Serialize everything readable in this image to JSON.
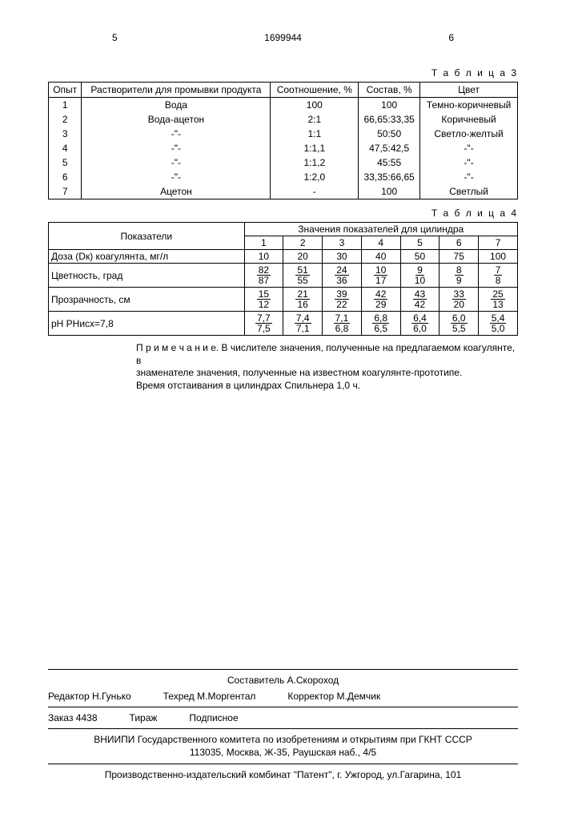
{
  "header": {
    "col_left": "5",
    "patent_num": "1699944",
    "col_right": "6"
  },
  "table3": {
    "label": "Т а б л и ц а 3",
    "columns": [
      "Опыт",
      "Растворители для промывки продукта",
      "Соотношение, %",
      "Состав, %",
      "Цвет"
    ],
    "rows": [
      [
        "1",
        "Вода",
        "100",
        "100",
        "Темно-коричневый"
      ],
      [
        "2",
        "Вода-ацетон",
        "2:1",
        "66,65:33,35",
        "Коричневый"
      ],
      [
        "3",
        "-\"-",
        "1:1",
        "50:50",
        "Светло-желтый"
      ],
      [
        "4",
        "-\"-",
        "1:1,1",
        "47,5:42,5",
        "-\"-"
      ],
      [
        "5",
        "-\"-",
        "1:1,2",
        "45:55",
        "-\"-"
      ],
      [
        "6",
        "-\"-",
        "1:2,0",
        "33,35:66,65",
        "-\"-"
      ],
      [
        "7",
        "Ацетон",
        "-",
        "100",
        "Светлый"
      ]
    ]
  },
  "table4": {
    "label": "Т а б л и ц а 4",
    "header_left": "Показатели",
    "header_right": "Значения показателей для цилиндра",
    "cyl_cols": [
      "1",
      "2",
      "3",
      "4",
      "5",
      "6",
      "7"
    ],
    "rows": [
      {
        "label": "Доза (Dк) коагулянта, мг/л",
        "type": "plain",
        "vals": [
          "10",
          "20",
          "30",
          "40",
          "50",
          "75",
          "100"
        ]
      },
      {
        "label": "Цветность, град",
        "type": "ratio",
        "num": [
          "82",
          "51",
          "24",
          "10",
          "9",
          "8",
          "7"
        ],
        "den": [
          "87",
          "55",
          "36",
          "17",
          "10",
          "9",
          "8"
        ]
      },
      {
        "label": "Прозрачность, см",
        "type": "ratio",
        "num": [
          "15",
          "21",
          "39",
          "42",
          "43",
          "33",
          "25"
        ],
        "den": [
          "12",
          "16",
          "22",
          "29",
          "42",
          "20",
          "13"
        ]
      },
      {
        "label": "pH РНисх=7,8",
        "type": "ratio",
        "num": [
          "7,7",
          "7,4",
          "7,1",
          "6,8",
          "6,4",
          "6,0",
          "5,4"
        ],
        "den": [
          "7,5",
          "7,1",
          "6,8",
          "6,5",
          "6,0",
          "5,5",
          "5,0"
        ]
      }
    ]
  },
  "note": {
    "prefix": "П р и м е ч а н и е.",
    "line1": "В числителе значения, полученные на предлагаемом коагулянте, в",
    "line2": "знаменателе значения, полученные на известном коагулянте-прототипе.",
    "line3": "Время отстаивания в цилиндрах Спильнера 1,0 ч."
  },
  "footer": {
    "compiler": "Составитель А.Скороход",
    "editor": "Редактор Н.Гунько",
    "techred": "Техред М.Моргентал",
    "corrector": "Корректор М.Демчик",
    "order": "Заказ 4438",
    "tirage": "Тираж",
    "subscr": "Подписное",
    "org1": "ВНИИПИ Государственного комитета по изобретениям и открытиям при ГКНТ СССР",
    "org2": "113035, Москва, Ж-35, Раушская наб., 4/5",
    "printer": "Производственно-издательский комбинат \"Патент\", г. Ужгород, ул.Гагарина, 101"
  }
}
